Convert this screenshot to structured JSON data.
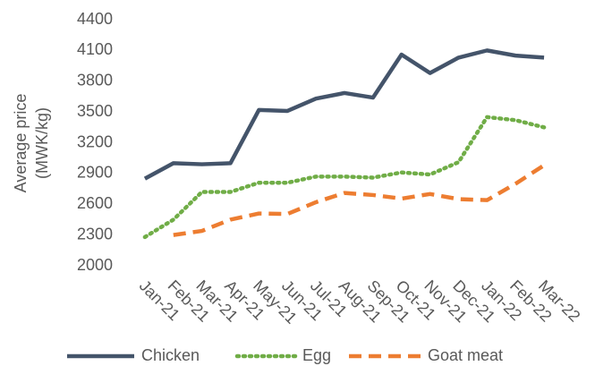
{
  "chart_data": {
    "type": "line",
    "y_label": [
      "Average price",
      "(MWK/kg)"
    ],
    "categories": [
      "Jan-21",
      "Feb-21",
      "Mar-21",
      "Apr-21",
      "May-21",
      "Jun-21",
      "Jul-21",
      "Aug-21",
      "Sep-21",
      "Oct-21",
      "Nov-21",
      "Dec-21",
      "Jan-22",
      "Feb-22",
      "Mar-22"
    ],
    "series": [
      {
        "name": "Chicken",
        "color": "#44546a",
        "dash": "solid",
        "values": [
          2850,
          3000,
          2990,
          3000,
          3520,
          3510,
          3630,
          3685,
          3640,
          4060,
          3880,
          4030,
          4100,
          4050,
          4030
        ]
      },
      {
        "name": "Egg",
        "color": "#70ad47",
        "dash": "dotted",
        "values": [
          2280,
          2450,
          2720,
          2720,
          2810,
          2810,
          2870,
          2870,
          2860,
          2910,
          2890,
          3010,
          3450,
          3420,
          3350
        ]
      },
      {
        "name": "Goat meat",
        "color": "#ed7d31",
        "dash": "dashed",
        "values": [
          null,
          2300,
          2340,
          2450,
          2510,
          2505,
          2620,
          2710,
          2690,
          2655,
          2700,
          2650,
          2640,
          2800,
          2980
        ]
      }
    ],
    "ylim": [
      2000,
      4400
    ],
    "yticks": [
      2000,
      2300,
      2600,
      2900,
      3200,
      3500,
      3800,
      4100,
      4400
    ],
    "grid": false,
    "legend": "bottom"
  }
}
